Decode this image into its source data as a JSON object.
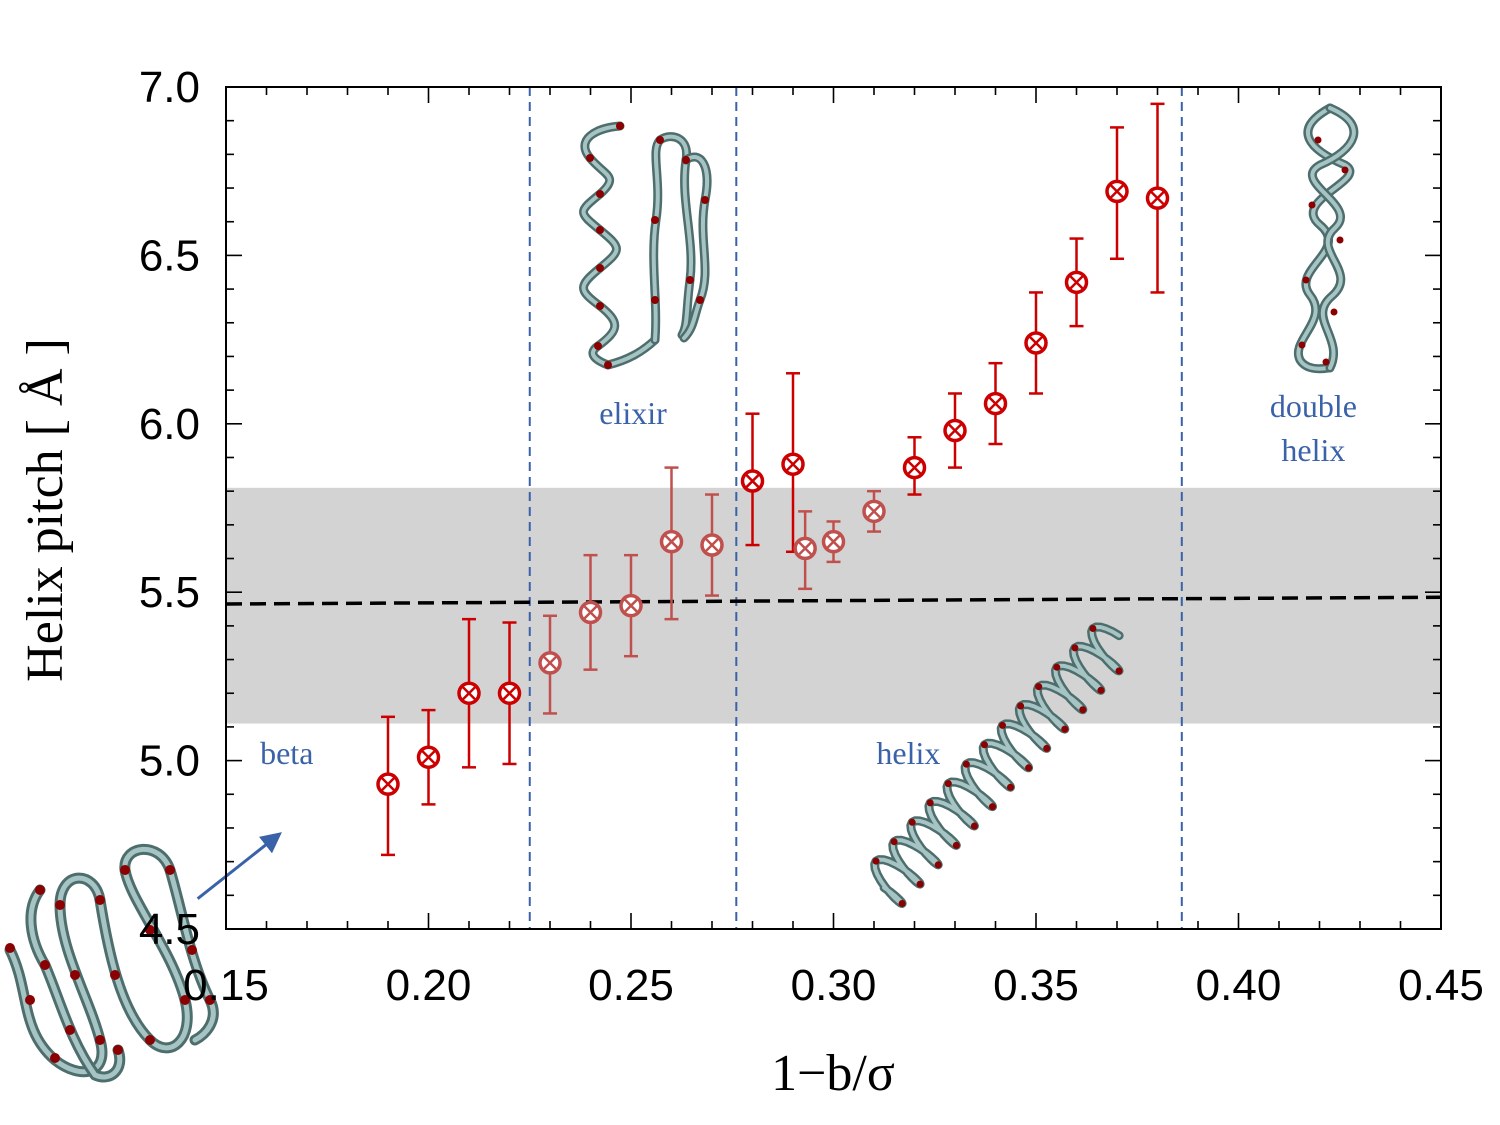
{
  "chart_data": {
    "type": "scatter",
    "title": "",
    "xlabel": "1−b/σ",
    "ylabel": "Helix pitch [ Å ]",
    "xlim": [
      0.15,
      0.45
    ],
    "ylim": [
      4.5,
      7.0
    ],
    "x_ticks": [
      "0.15",
      "0.20",
      "0.25",
      "0.30",
      "0.35",
      "0.40",
      "0.45"
    ],
    "y_ticks": [
      "4.5",
      "5.0",
      "5.5",
      "6.0",
      "6.5",
      "7.0"
    ],
    "grid": false,
    "series": [
      {
        "name": "helix pitch",
        "color": "#cc0000",
        "marker": "circle-x",
        "x": [
          0.19,
          0.2,
          0.21,
          0.22,
          0.23,
          0.24,
          0.25,
          0.26,
          0.27,
          0.28,
          0.29,
          0.293,
          0.3,
          0.31,
          0.32,
          0.33,
          0.34,
          0.35,
          0.36,
          0.37,
          0.38
        ],
        "y": [
          4.93,
          5.01,
          5.2,
          5.2,
          5.29,
          5.44,
          5.46,
          5.65,
          5.64,
          5.83,
          5.88,
          5.63,
          5.65,
          5.74,
          5.87,
          5.98,
          6.06,
          6.24,
          6.42,
          6.69,
          6.67
        ],
        "y_low": [
          4.72,
          4.87,
          4.98,
          4.99,
          5.14,
          5.27,
          5.31,
          5.42,
          5.49,
          5.64,
          5.62,
          5.51,
          5.59,
          5.68,
          5.79,
          5.87,
          5.94,
          6.09,
          6.29,
          6.49,
          6.39
        ],
        "y_high": [
          5.13,
          5.15,
          5.42,
          5.41,
          5.43,
          5.61,
          5.61,
          5.87,
          5.79,
          6.03,
          6.15,
          5.74,
          5.71,
          5.8,
          5.96,
          6.09,
          6.18,
          6.39,
          6.55,
          6.88,
          6.95
        ],
        "faded_indices": [
          4,
          5,
          6,
          7,
          8,
          11,
          12,
          13
        ]
      }
    ],
    "reference_line": {
      "x": [
        0.15,
        0.45
      ],
      "y": [
        5.465,
        5.485
      ],
      "style": "dashed",
      "color": "#000000"
    },
    "reference_band": {
      "y_low": 5.11,
      "y_high": 5.81,
      "color": "#d3d3d3"
    },
    "region_boundaries": {
      "x": [
        0.225,
        0.276,
        0.386
      ],
      "style": "dashed",
      "color": "#3a62a8"
    },
    "annotations": [
      {
        "text": "beta",
        "x": 0.165,
        "y": 4.99
      },
      {
        "text": "elixir",
        "x": 0.2505,
        "y": 6.0
      },
      {
        "text": "helix",
        "x": 0.3185,
        "y": 4.99
      },
      {
        "text": "double",
        "x": 0.4185,
        "y": 6.02
      },
      {
        "text": "helix",
        "x": 0.4185,
        "y": 5.89
      }
    ],
    "arrow": {
      "from": [
        0.143,
        4.59
      ],
      "to": [
        0.163,
        4.78
      ],
      "color": "#3a62a8"
    }
  }
}
